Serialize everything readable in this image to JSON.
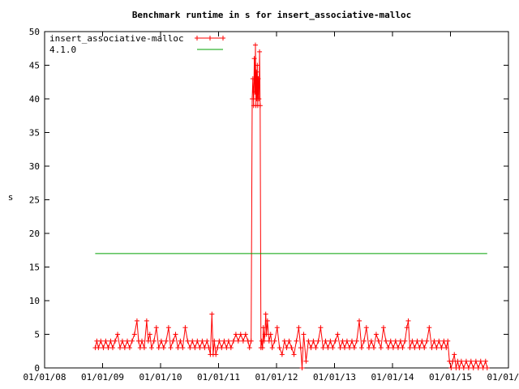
{
  "chart_data": {
    "type": "line",
    "title": "Benchmark runtime in s for insert_associative-malloc",
    "xlabel": "",
    "ylabel": "s",
    "x_ticks": [
      "01/01/08",
      "01/01/09",
      "01/01/10",
      "01/01/11",
      "01/01/12",
      "01/01/13",
      "01/01/14",
      "01/01/15",
      "01/01/16"
    ],
    "y_ticks": [
      "0",
      "5",
      "10",
      "15",
      "20",
      "25",
      "30",
      "35",
      "40",
      "45",
      "50"
    ],
    "ylim": [
      0,
      50
    ],
    "xlim": [
      "2008-01-01",
      "2016-01-01"
    ],
    "grid": false,
    "legend_position": "top-left",
    "series": [
      {
        "name": "insert_associative-malloc",
        "color": "#ff0000",
        "marker": "plus",
        "values": [
          [
            "2008-11-15",
            3
          ],
          [
            "2008-11-25",
            4
          ],
          [
            "2008-12-05",
            3
          ],
          [
            "2008-12-20",
            4
          ],
          [
            "2009-01-05",
            3
          ],
          [
            "2009-01-20",
            4
          ],
          [
            "2009-02-05",
            3
          ],
          [
            "2009-02-20",
            4
          ],
          [
            "2009-03-05",
            3
          ],
          [
            "2009-03-20",
            4
          ],
          [
            "2009-04-05",
            5
          ],
          [
            "2009-04-20",
            3
          ],
          [
            "2009-05-05",
            4
          ],
          [
            "2009-05-20",
            3
          ],
          [
            "2009-06-05",
            4
          ],
          [
            "2009-06-20",
            3
          ],
          [
            "2009-07-05",
            4
          ],
          [
            "2009-07-20",
            5
          ],
          [
            "2009-08-05",
            7
          ],
          [
            "2009-08-15",
            4
          ],
          [
            "2009-08-25",
            3
          ],
          [
            "2009-09-05",
            4
          ],
          [
            "2009-09-20",
            3
          ],
          [
            "2009-10-05",
            7
          ],
          [
            "2009-10-15",
            4
          ],
          [
            "2009-10-25",
            5
          ],
          [
            "2009-11-05",
            3
          ],
          [
            "2009-11-20",
            4
          ],
          [
            "2009-12-05",
            6
          ],
          [
            "2009-12-20",
            3
          ],
          [
            "2010-01-05",
            4
          ],
          [
            "2010-01-20",
            3
          ],
          [
            "2010-02-05",
            4
          ],
          [
            "2010-02-20",
            6
          ],
          [
            "2010-03-05",
            3
          ],
          [
            "2010-03-20",
            4
          ],
          [
            "2010-04-05",
            5
          ],
          [
            "2010-04-20",
            3
          ],
          [
            "2010-05-05",
            4
          ],
          [
            "2010-05-20",
            3
          ],
          [
            "2010-06-05",
            6
          ],
          [
            "2010-06-20",
            4
          ],
          [
            "2010-07-05",
            3
          ],
          [
            "2010-07-20",
            4
          ],
          [
            "2010-08-05",
            3
          ],
          [
            "2010-08-20",
            4
          ],
          [
            "2010-09-05",
            3
          ],
          [
            "2010-09-20",
            4
          ],
          [
            "2010-10-05",
            3
          ],
          [
            "2010-10-20",
            4
          ],
          [
            "2010-11-01",
            3
          ],
          [
            "2010-11-10",
            2
          ],
          [
            "2010-11-20",
            8
          ],
          [
            "2010-11-28",
            2
          ],
          [
            "2010-12-05",
            4
          ],
          [
            "2010-12-15",
            2
          ],
          [
            "2010-12-25",
            3
          ],
          [
            "2011-01-05",
            4
          ],
          [
            "2011-01-20",
            3
          ],
          [
            "2011-02-05",
            4
          ],
          [
            "2011-02-20",
            3
          ],
          [
            "2011-03-05",
            4
          ],
          [
            "2011-03-20",
            3
          ],
          [
            "2011-04-05",
            4
          ],
          [
            "2011-04-20",
            5
          ],
          [
            "2011-05-05",
            4
          ],
          [
            "2011-05-20",
            5
          ],
          [
            "2011-06-05",
            4
          ],
          [
            "2011-06-20",
            5
          ],
          [
            "2011-07-05",
            4
          ],
          [
            "2011-07-15",
            3
          ],
          [
            "2011-07-25",
            4
          ],
          [
            "2011-08-01",
            40
          ],
          [
            "2011-08-05",
            43
          ],
          [
            "2011-08-10",
            39
          ],
          [
            "2011-08-14",
            46
          ],
          [
            "2011-08-18",
            41
          ],
          [
            "2011-08-21",
            48
          ],
          [
            "2011-08-24",
            39
          ],
          [
            "2011-08-27",
            44
          ],
          [
            "2011-08-30",
            40
          ],
          [
            "2011-09-02",
            45
          ],
          [
            "2011-09-05",
            39
          ],
          [
            "2011-09-08",
            43
          ],
          [
            "2011-09-12",
            40
          ],
          [
            "2011-09-16",
            47
          ],
          [
            "2011-09-20",
            39
          ],
          [
            "2011-09-25",
            3
          ],
          [
            "2011-09-30",
            4
          ],
          [
            "2011-10-05",
            3
          ],
          [
            "2011-10-10",
            6
          ],
          [
            "2011-10-15",
            4
          ],
          [
            "2011-10-20",
            5
          ],
          [
            "2011-10-25",
            8
          ],
          [
            "2011-10-30",
            5
          ],
          [
            "2011-11-05",
            7
          ],
          [
            "2011-11-15",
            4
          ],
          [
            "2011-11-25",
            5
          ],
          [
            "2011-12-05",
            3
          ],
          [
            "2011-12-20",
            4
          ],
          [
            "2012-01-05",
            6
          ],
          [
            "2012-01-20",
            3
          ],
          [
            "2012-02-05",
            2
          ],
          [
            "2012-02-20",
            4
          ],
          [
            "2012-03-05",
            3
          ],
          [
            "2012-03-20",
            4
          ],
          [
            "2012-04-05",
            3
          ],
          [
            "2012-04-20",
            2
          ],
          [
            "2012-05-05",
            4
          ],
          [
            "2012-05-20",
            6
          ],
          [
            "2012-06-01",
            3
          ],
          [
            "2012-06-10",
            0
          ],
          [
            "2012-06-20",
            5
          ],
          [
            "2012-07-05",
            1
          ],
          [
            "2012-07-20",
            4
          ],
          [
            "2012-08-05",
            3
          ],
          [
            "2012-08-20",
            4
          ],
          [
            "2012-09-05",
            3
          ],
          [
            "2012-09-20",
            4
          ],
          [
            "2012-10-05",
            6
          ],
          [
            "2012-10-20",
            3
          ],
          [
            "2012-11-05",
            4
          ],
          [
            "2012-11-20",
            3
          ],
          [
            "2012-12-05",
            4
          ],
          [
            "2012-12-20",
            3
          ],
          [
            "2013-01-05",
            4
          ],
          [
            "2013-01-20",
            5
          ],
          [
            "2013-02-05",
            3
          ],
          [
            "2013-02-20",
            4
          ],
          [
            "2013-03-05",
            3
          ],
          [
            "2013-03-20",
            4
          ],
          [
            "2013-04-05",
            3
          ],
          [
            "2013-04-20",
            4
          ],
          [
            "2013-05-05",
            3
          ],
          [
            "2013-05-20",
            4
          ],
          [
            "2013-06-05",
            7
          ],
          [
            "2013-06-20",
            3
          ],
          [
            "2013-07-05",
            4
          ],
          [
            "2013-07-20",
            6
          ],
          [
            "2013-08-05",
            3
          ],
          [
            "2013-08-20",
            4
          ],
          [
            "2013-09-05",
            3
          ],
          [
            "2013-09-20",
            5
          ],
          [
            "2013-10-05",
            4
          ],
          [
            "2013-10-20",
            3
          ],
          [
            "2013-11-05",
            6
          ],
          [
            "2013-11-20",
            4
          ],
          [
            "2013-12-05",
            3
          ],
          [
            "2013-12-20",
            4
          ],
          [
            "2014-01-05",
            3
          ],
          [
            "2014-01-20",
            4
          ],
          [
            "2014-02-05",
            3
          ],
          [
            "2014-02-20",
            4
          ],
          [
            "2014-03-05",
            3
          ],
          [
            "2014-03-20",
            4
          ],
          [
            "2014-04-01",
            6
          ],
          [
            "2014-04-10",
            7
          ],
          [
            "2014-04-20",
            3
          ],
          [
            "2014-05-05",
            4
          ],
          [
            "2014-05-20",
            3
          ],
          [
            "2014-06-05",
            4
          ],
          [
            "2014-06-20",
            3
          ],
          [
            "2014-07-05",
            4
          ],
          [
            "2014-07-20",
            3
          ],
          [
            "2014-08-05",
            4
          ],
          [
            "2014-08-20",
            6
          ],
          [
            "2014-09-05",
            3
          ],
          [
            "2014-09-20",
            4
          ],
          [
            "2014-10-05",
            3
          ],
          [
            "2014-10-20",
            4
          ],
          [
            "2014-11-05",
            3
          ],
          [
            "2014-11-20",
            4
          ],
          [
            "2014-12-05",
            3
          ],
          [
            "2014-12-15",
            4
          ],
          [
            "2014-12-25",
            1
          ],
          [
            "2015-01-05",
            0
          ],
          [
            "2015-01-15",
            1
          ],
          [
            "2015-01-25",
            2
          ],
          [
            "2015-02-05",
            0
          ],
          [
            "2015-02-15",
            1
          ],
          [
            "2015-02-25",
            0
          ],
          [
            "2015-03-10",
            1
          ],
          [
            "2015-03-25",
            0
          ],
          [
            "2015-04-10",
            1
          ],
          [
            "2015-04-25",
            0
          ],
          [
            "2015-05-10",
            1
          ],
          [
            "2015-05-25",
            0
          ],
          [
            "2015-06-10",
            1
          ],
          [
            "2015-06-25",
            0
          ],
          [
            "2015-07-10",
            1
          ],
          [
            "2015-07-25",
            0
          ],
          [
            "2015-08-10",
            1
          ],
          [
            "2015-08-20",
            0
          ]
        ]
      },
      {
        "name": "4.1.0",
        "color": "#00a000",
        "marker": "none",
        "values": [
          [
            "2008-11-15",
            17
          ],
          [
            "2015-08-20",
            17
          ]
        ]
      }
    ]
  }
}
